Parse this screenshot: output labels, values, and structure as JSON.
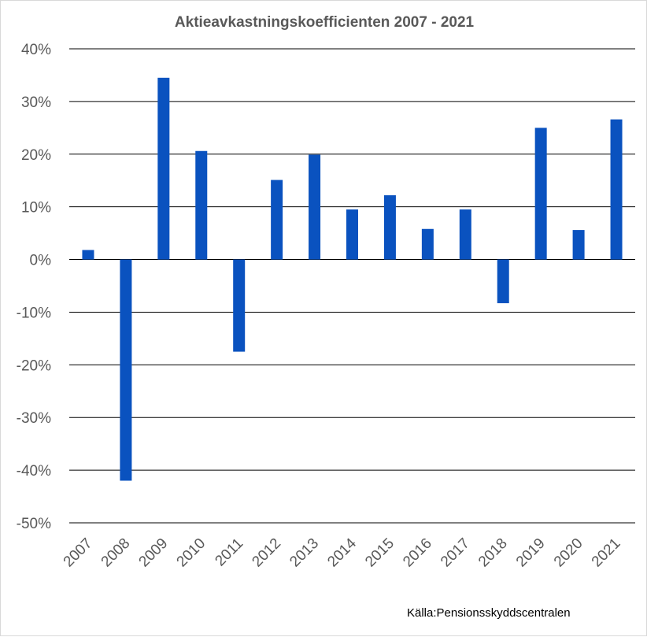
{
  "chart_data": {
    "type": "bar",
    "title": "Aktieavkastningskoefficienten 2007 - 2021",
    "source": "Källa:Pensionsskyddscentralen",
    "categories": [
      "2007",
      "2008",
      "2009",
      "2010",
      "2011",
      "2012",
      "2013",
      "2014",
      "2015",
      "2016",
      "2017",
      "2018",
      "2019",
      "2020",
      "2021"
    ],
    "values": [
      1.8,
      -42.0,
      34.5,
      20.6,
      -17.5,
      15.1,
      19.9,
      9.5,
      12.2,
      5.8,
      9.5,
      -8.3,
      25.0,
      5.6,
      26.6
    ],
    "ylim": [
      -50,
      40
    ],
    "yticks": [
      "40%",
      "30%",
      "20%",
      "10%",
      "0%",
      "-10%",
      "-20%",
      "-30%",
      "-40%",
      "-50%"
    ],
    "ytick_values": [
      40,
      30,
      20,
      10,
      0,
      -10,
      -20,
      -30,
      -40,
      -50
    ],
    "grid": true,
    "bar_color": "#0a52bf",
    "grid_color": "#000000"
  }
}
